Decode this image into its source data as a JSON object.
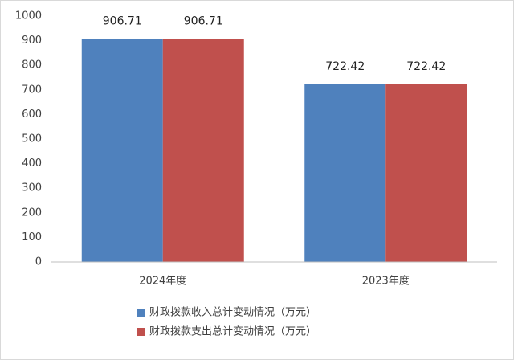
{
  "chart_data": {
    "type": "bar",
    "categories": [
      "2024年度",
      "2023年度"
    ],
    "series": [
      {
        "name": "财政拨款收入总计变动情况（万元）",
        "color": "#4f81bd",
        "values": [
          906.71,
          722.42
        ]
      },
      {
        "name": "财政拨款支出总计变动情况（万元）",
        "color": "#c0504d",
        "values": [
          906.71,
          722.42
        ]
      }
    ],
    "ylim": [
      0,
      1000
    ],
    "yticks": [
      0,
      100,
      200,
      300,
      400,
      500,
      600,
      700,
      800,
      900,
      1000
    ],
    "grid": false,
    "legend": "bottom"
  }
}
